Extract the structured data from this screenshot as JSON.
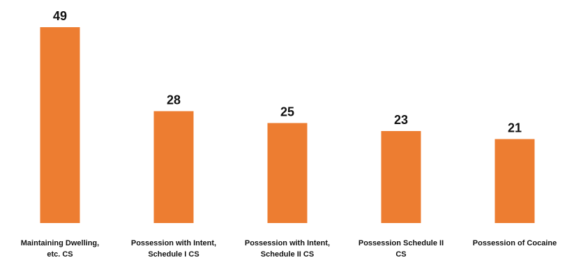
{
  "chart_data": {
    "type": "bar",
    "title": "",
    "xlabel": "",
    "ylabel": "",
    "categories": [
      [
        "Maintaining Dwelling,",
        "etc. CS"
      ],
      [
        "Possession with Intent,",
        "Schedule I CS"
      ],
      [
        "Possession with Intent,",
        "Schedule II CS"
      ],
      [
        "Possession Schedule II",
        "CS"
      ],
      [
        "Possession of Cocaine"
      ]
    ],
    "values": [
      49,
      28,
      25,
      23,
      21
    ],
    "ylim": [
      0,
      49
    ],
    "grid": false,
    "legend": "none",
    "bar_color": "#ED7D31",
    "label_color": "#111111"
  }
}
